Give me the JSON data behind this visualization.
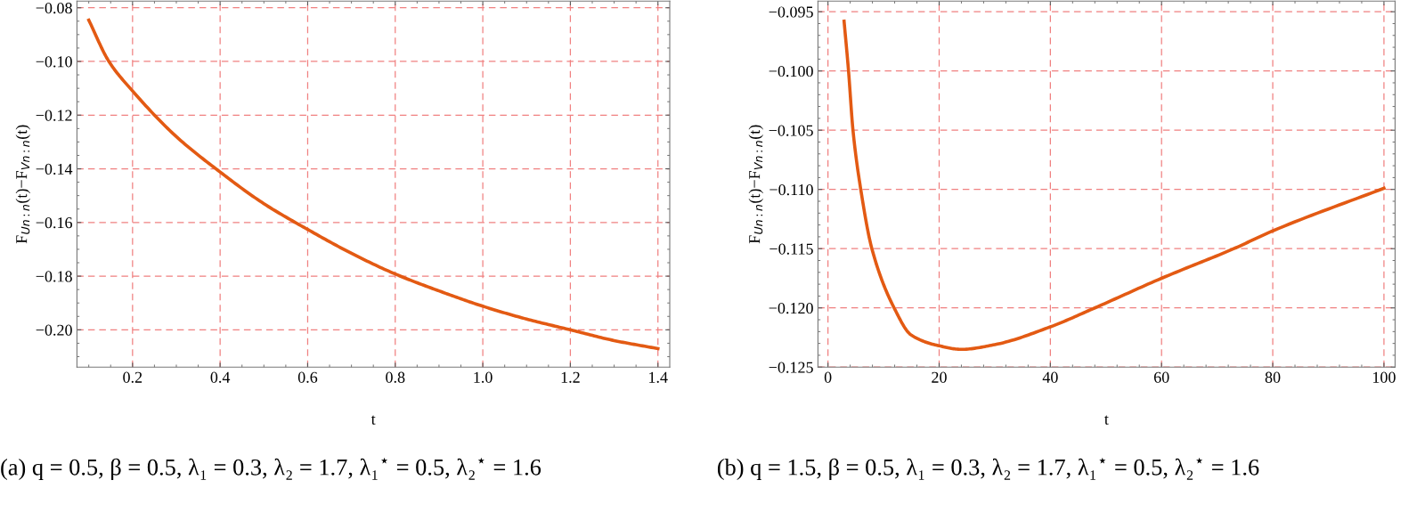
{
  "chart_data": [
    {
      "type": "line",
      "xlabel": "t",
      "ylabel": "F$_{Un:n}$(t)−F$_{Vn:n}$(t)",
      "x": [
        0.1,
        0.146,
        0.2,
        0.3,
        0.4,
        0.5,
        0.6,
        0.7,
        0.8,
        0.9,
        1.0,
        1.1,
        1.2,
        1.3,
        1.4
      ],
      "series": [
        {
          "color": "#e35a13",
          "values": [
            -0.0846,
            -0.1,
            -0.111,
            -0.128,
            -0.1412,
            -0.153,
            -0.1626,
            -0.1715,
            -0.1792,
            -0.1855,
            -0.1912,
            -0.196,
            -0.2,
            -0.204,
            -0.207
          ]
        }
      ],
      "xlim": [
        0.073,
        1.427
      ],
      "ylim": [
        -0.2139,
        -0.0775
      ],
      "xticks": [
        0.2,
        0.4,
        0.6,
        0.8,
        {
          "value": 1.0,
          "label": "1.0"
        },
        1.2,
        1.4
      ],
      "yticks": [
        {
          "value": -0.2,
          "label": "−0.20"
        },
        {
          "value": -0.18,
          "label": "−0.18"
        },
        {
          "value": -0.16,
          "label": "−0.16"
        },
        {
          "value": -0.14,
          "label": "−0.14"
        },
        {
          "value": -0.12,
          "label": "−0.12"
        },
        {
          "value": -0.1,
          "label": "−0.10"
        },
        {
          "value": -0.08,
          "label": "−0.08"
        }
      ],
      "grid": true,
      "marker": "none",
      "line_style": "solid",
      "annotations": [
        "(a) q = 0.5, β = 0.5, λ₁ = 0.3, λ₂ = 1.7, λ₁$^{⋆}$ = 0.5, λ₂$^{⋆}$ = 1.6"
      ]
    },
    {
      "type": "line",
      "xlabel": "t",
      "ylabel": "F$_{Un:n}$(t)−F$_{Vn:n}$(t)",
      "x": [
        2.9,
        3.7,
        4.5,
        5.9,
        7.9,
        11.9,
        15,
        20,
        24,
        30,
        40,
        48,
        60,
        73,
        80,
        100
      ],
      "series": [
        {
          "color": "#e35a13",
          "values": [
            -0.0958,
            -0.1,
            -0.105,
            -0.11,
            -0.115,
            -0.12,
            -0.1223,
            -0.1232,
            -0.1235,
            -0.1231,
            -0.1216,
            -0.12,
            -0.1175,
            -0.115,
            -0.1135,
            -0.1099
          ]
        }
      ],
      "xlim": [
        -1.8,
        102
      ],
      "ylim": [
        -0.125,
        -0.0941
      ],
      "xticks": [
        0,
        20,
        40,
        60,
        80,
        100
      ],
      "yticks": [
        {
          "value": -0.125,
          "label": "−0.125"
        },
        {
          "value": -0.12,
          "label": "−0.120"
        },
        {
          "value": -0.115,
          "label": "−0.115"
        },
        {
          "value": -0.11,
          "label": "−0.110"
        },
        {
          "value": -0.105,
          "label": "−0.105"
        },
        {
          "value": -0.1,
          "label": "−0.100"
        },
        {
          "value": -0.095,
          "label": "−0.095"
        }
      ],
      "grid": true,
      "marker": "none",
      "line_style": "solid",
      "annotations": [
        "(b) q = 1.5, β = 0.5, λ₁ = 0.3, λ₂ = 1.7, λ₁$^{⋆}$ = 0.5, λ₂$^{⋆}$ = 1.6"
      ]
    }
  ]
}
